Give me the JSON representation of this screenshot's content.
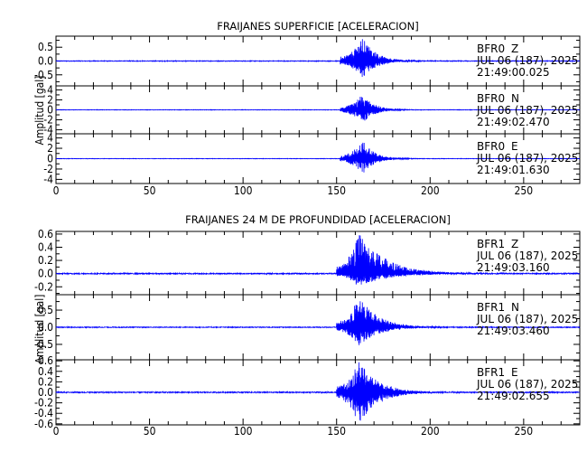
{
  "chart_data": [
    {
      "type": "line",
      "title": "FRAIJANES SUPERFICIE [ACELERACION]",
      "ylabel": "Amplitud  [gal]",
      "xlim": [
        0,
        280
      ],
      "x_ticks": [
        "0",
        "50",
        "100",
        "150",
        "200",
        "250"
      ],
      "series_color": "#0000ff",
      "panels": [
        {
          "station": "BFR0",
          "component": "Z",
          "date": "JUL 06 (187), 2025",
          "time": "21:49:00.025",
          "ylim": [
            -0.9,
            0.9
          ],
          "y_ticks": [
            {
              "value": 0.5,
              "label": "0.5"
            },
            {
              "value": 0.0,
              "label": "0.0"
            },
            {
              "value": -0.5,
              "label": "-0.5"
            }
          ],
          "envelope": {
            "noise": 0.012,
            "onset": 152,
            "peak_time": 164,
            "peak_pos": 0.85,
            "peak_neg": -0.62,
            "decay": 7
          }
        },
        {
          "station": "BFR0",
          "component": "N",
          "date": "JUL 06 (187), 2025",
          "time": "21:49:02.470",
          "ylim": [
            -4.8,
            4.8
          ],
          "y_ticks": [
            {
              "value": 4,
              "label": "4"
            },
            {
              "value": 2,
              "label": "2"
            },
            {
              "value": 0,
              "label": "0"
            },
            {
              "value": -2,
              "label": "-2"
            },
            {
              "value": -4,
              "label": "-4"
            }
          ],
          "envelope": {
            "noise": 0.04,
            "onset": 152,
            "peak_time": 164,
            "peak_pos": 3.2,
            "peak_neg": -2.6,
            "decay": 6
          }
        },
        {
          "station": "BFR0",
          "component": "E",
          "date": "JUL 06 (187), 2025",
          "time": "21:49:01.630",
          "ylim": [
            -4.8,
            4.8
          ],
          "y_ticks": [
            {
              "value": 4,
              "label": "4"
            },
            {
              "value": 2,
              "label": "2"
            },
            {
              "value": 0,
              "label": "0"
            },
            {
              "value": -2,
              "label": "-2"
            },
            {
              "value": -4,
              "label": "-4"
            }
          ],
          "envelope": {
            "noise": 0.04,
            "onset": 152,
            "peak_time": 164,
            "peak_pos": 3.5,
            "peak_neg": -3.0,
            "decay": 6
          }
        }
      ]
    },
    {
      "type": "line",
      "title": "FRAIJANES 24 M DE PROFUNDIDAD [ACELERACION]",
      "ylabel": "Amplitud  [gal]",
      "xlim": [
        0,
        280
      ],
      "x_ticks": [
        "0",
        "50",
        "100",
        "150",
        "200",
        "250"
      ],
      "series_color": "#0000ff",
      "panels": [
        {
          "station": "BFR1",
          "component": "Z",
          "date": "JUL 06 (187), 2025",
          "time": "21:49:03.160",
          "ylim": [
            -0.32,
            0.64
          ],
          "y_ticks": [
            {
              "value": 0.6,
              "label": "0.6"
            },
            {
              "value": 0.4,
              "label": "0.4"
            },
            {
              "value": 0.2,
              "label": "0.2"
            },
            {
              "value": 0.0,
              "label": "0.0"
            },
            {
              "value": -0.2,
              "label": "-0.2"
            }
          ],
          "envelope": {
            "noise": 0.008,
            "onset": 150,
            "peak_time": 162,
            "peak_pos": 0.62,
            "peak_neg": -0.2,
            "decay": 14
          }
        },
        {
          "station": "BFR1",
          "component": "N",
          "date": "JUL 06 (187), 2025",
          "time": "21:49:03.460",
          "ylim": [
            -0.95,
            0.95
          ],
          "y_ticks": [
            {
              "value": 0.5,
              "label": "0.5"
            },
            {
              "value": 0.0,
              "label": "0.0"
            },
            {
              "value": -0.5,
              "label": "-0.5"
            }
          ],
          "envelope": {
            "noise": 0.012,
            "onset": 150,
            "peak_time": 162,
            "peak_pos": 0.9,
            "peak_neg": -0.55,
            "decay": 10
          }
        },
        {
          "station": "BFR1",
          "component": "E",
          "date": "JUL 06 (187), 2025",
          "time": "21:49:02.655",
          "ylim": [
            -0.62,
            0.62
          ],
          "y_ticks": [
            {
              "value": 0.6,
              "label": "0.6"
            },
            {
              "value": 0.4,
              "label": "0.4"
            },
            {
              "value": 0.2,
              "label": "0.2"
            },
            {
              "value": 0.0,
              "label": "0.0"
            },
            {
              "value": -0.2,
              "label": "-0.2"
            },
            {
              "value": -0.4,
              "label": "-0.4"
            },
            {
              "value": -0.6,
              "label": "-0.6"
            }
          ],
          "envelope": {
            "noise": 0.01,
            "onset": 150,
            "peak_time": 162,
            "peak_pos": 0.6,
            "peak_neg": -0.6,
            "decay": 10
          }
        }
      ]
    }
  ]
}
